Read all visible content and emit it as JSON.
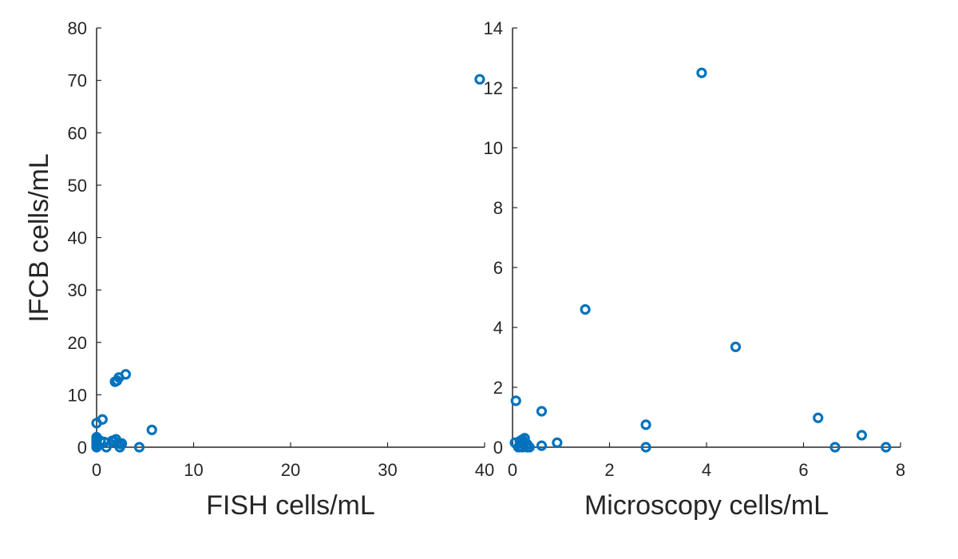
{
  "chart_data": [
    {
      "type": "scatter",
      "xlabel": "FISH cells/mL",
      "ylabel": "IFCB cells/mL",
      "xlim": [
        0,
        40
      ],
      "ylim": [
        0,
        80
      ],
      "xticks": [
        0,
        10,
        20,
        30,
        40
      ],
      "yticks": [
        0,
        10,
        20,
        30,
        40,
        50,
        60,
        70,
        80
      ],
      "marker_color": "#0072BD",
      "x": [
        0,
        0,
        0,
        0,
        0,
        0,
        0,
        0,
        0.6,
        0.4,
        0.8,
        1.0,
        1.6,
        1.8,
        2.0,
        2.2,
        2.4,
        2.5,
        2.6,
        1.9,
        2.1,
        2.3,
        3.0,
        4.4,
        5.7,
        39.5
      ],
      "y": [
        4.6,
        1.9,
        1.5,
        1.2,
        0.9,
        0.6,
        0.3,
        0,
        5.3,
        1.2,
        1.0,
        0,
        1.2,
        1.1,
        1.5,
        0.8,
        0,
        0.6,
        0.7,
        12.5,
        12.7,
        13.3,
        13.9,
        0,
        3.3,
        70.2
      ]
    },
    {
      "type": "scatter",
      "xlabel": "Microscopy cells/mL",
      "ylabel": "",
      "xlim": [
        0,
        8
      ],
      "ylim": [
        0,
        14
      ],
      "xticks": [
        0,
        2,
        4,
        6,
        8
      ],
      "yticks": [
        0,
        2,
        4,
        6,
        8,
        10,
        12,
        14
      ],
      "marker_color": "#0072BD",
      "x": [
        0.07,
        0.05,
        0.15,
        0.2,
        0.25,
        0.3,
        0.2,
        0.12,
        0.3,
        0.35,
        0.6,
        0.6,
        0.92,
        1.5,
        2.75,
        2.75,
        3.9,
        4.6,
        6.3,
        6.65,
        7.2,
        7.7,
        0.15,
        0.25
      ],
      "y": [
        1.55,
        0.15,
        0.2,
        0.25,
        0.3,
        0.1,
        0,
        0,
        0,
        0,
        1.2,
        0.05,
        0.15,
        4.6,
        0.75,
        0,
        12.5,
        3.35,
        0.98,
        0,
        0.4,
        0,
        0.05,
        0.15
      ]
    }
  ]
}
